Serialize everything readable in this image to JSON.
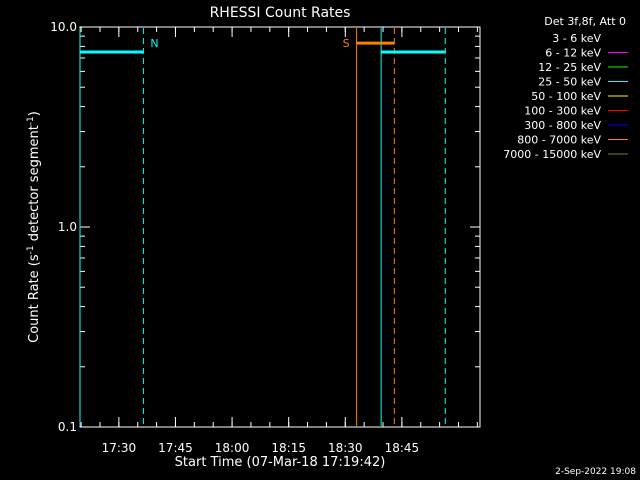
{
  "chart_data": {
    "type": "line",
    "title": "RHESSI Count Rates",
    "xlabel": "Start Time (07-Mar-18 17:19:42)",
    "ylabel": {
      "prefix": "Count Rate (s",
      "sup1": "-1",
      "middle": " detector segment",
      "sup2": "-1",
      "suffix": ")"
    },
    "yscale": "log",
    "ylim": [
      0.1,
      10.0
    ],
    "xlim": [
      "17:19:42",
      "19:05:42"
    ],
    "x_ticks": [
      "17:30",
      "17:45",
      "18:00",
      "18:15",
      "18:30",
      "18:45"
    ],
    "y_ticks": [
      {
        "value": 10.0,
        "label": "10.0"
      },
      {
        "value": 1.0,
        "label": "1.0"
      },
      {
        "value": 0.1,
        "label": "0.1"
      }
    ],
    "legend": {
      "position": "top-right outside",
      "title": "Det 3f,8f, Att 0",
      "entries": [
        {
          "label": "3 - 6 keV",
          "color": "#000000"
        },
        {
          "label": "6 - 12 keV",
          "color": "#ff00ff"
        },
        {
          "label": "12 - 25 keV",
          "color": "#00ff00"
        },
        {
          "label": "25 - 50 keV",
          "color": "#00ffff"
        },
        {
          "label": "50 - 100 keV",
          "color": "#ffff00"
        },
        {
          "label": "100 - 300 keV",
          "color": "#ff0000"
        },
        {
          "label": "300 - 800 keV",
          "color": "#0000ff"
        },
        {
          "label": "800 - 7000 keV",
          "color": "#ff7f00"
        },
        {
          "label": "7000 - 15000 keV",
          "color": "#7f7f00"
        }
      ]
    },
    "series": [
      {
        "name": "25 - 50 keV",
        "color": "#00ffff",
        "segments": [
          {
            "x_start": "17:19:42",
            "x_end": "17:36:30",
            "y": 7.5
          },
          {
            "x_start": "18:39:30",
            "x_end": "18:56:30",
            "y": 7.5
          }
        ]
      },
      {
        "name": "800 - 7000 keV",
        "color": "#ff7f00",
        "segments": [
          {
            "x_start": "18:33:00",
            "x_end": "18:43:00",
            "y": 8.3
          }
        ]
      }
    ],
    "vertical_markers": [
      {
        "x": "17:19:42",
        "color": "#00ffff",
        "style": "solid"
      },
      {
        "x": "17:36:30",
        "color": "#00ffff",
        "style": "dashed",
        "label": "N",
        "label_side": "right"
      },
      {
        "x": "18:33:00",
        "color": "#ff7f00",
        "style": "solid",
        "label": "S",
        "label_side": "left"
      },
      {
        "x": "18:39:30",
        "color": "#00ffff",
        "style": "solid"
      },
      {
        "x": "18:43:00",
        "color": "#ff7f00",
        "style": "dashed"
      },
      {
        "x": "18:56:30",
        "color": "#00ffff",
        "style": "dashed"
      }
    ]
  },
  "footer": {
    "date": "2-Sep-2022 19:08"
  }
}
